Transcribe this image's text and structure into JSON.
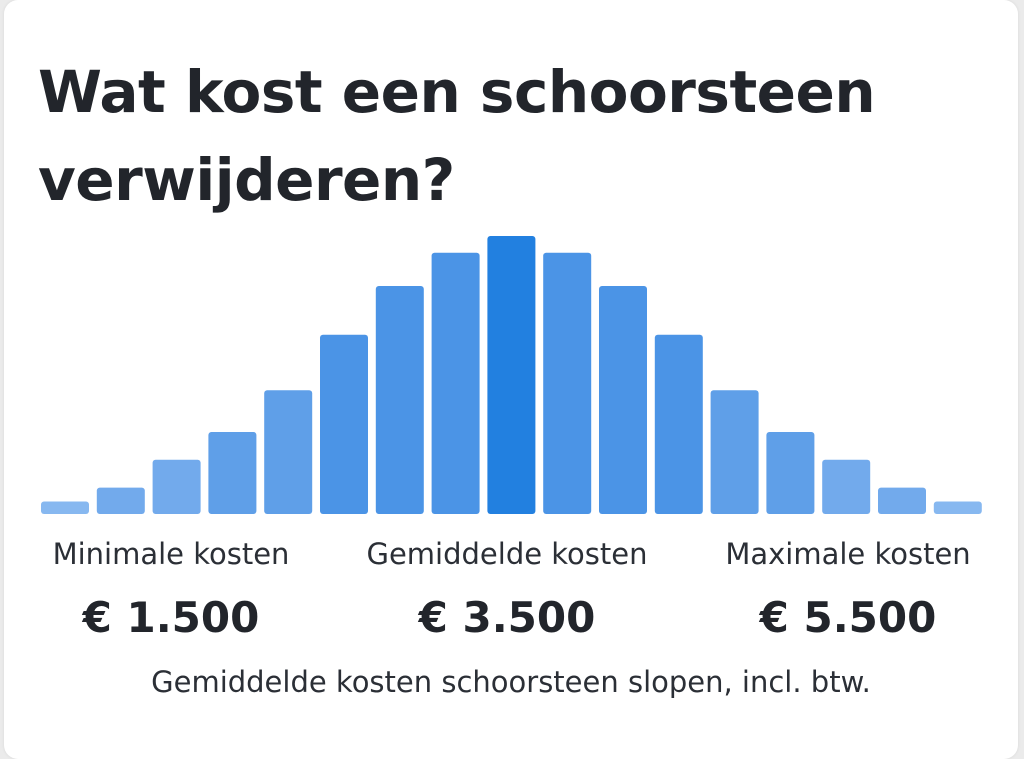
{
  "title": "Wat kost een schoorsteen verwijderen?",
  "caption": "Gemiddelde kosten schoorsteen slopen, incl. btw.",
  "stats": {
    "min_label": "Minimale kosten",
    "min_value": "€ 1.500",
    "avg_label": "Gemiddelde kosten",
    "avg_value": "€ 3.500",
    "max_label": "Maximale kosten",
    "max_value": "€ 5.500"
  },
  "chart_data": {
    "type": "bar",
    "title": "Wat kost een schoorsteen verwijderen?",
    "xlabel": "",
    "ylabel": "",
    "grid": false,
    "values": [
      4.5,
      9.5,
      19.5,
      29.5,
      44.5,
      64.5,
      82,
      94,
      100,
      94,
      82,
      64.5,
      44.5,
      29.5,
      19.5,
      9.5,
      4.5
    ],
    "ylim": [
      0,
      100
    ],
    "colors": {
      "peak": "#2280e0",
      "inner": "#4b94e6",
      "middle": "#5f9fe8",
      "outer": "#72aaec",
      "edge": "#87b8f0"
    }
  }
}
